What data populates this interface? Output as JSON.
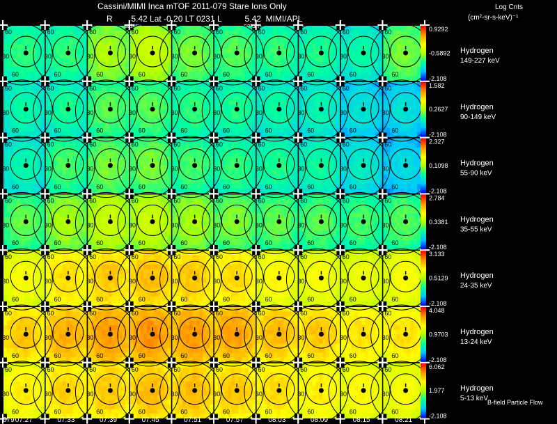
{
  "header": {
    "title": "Cassini/MIMI Inca mTOF  2011-079   Stare   Ions Only",
    "subtitle": "R        5.42 Lat -0.20 LT 0231 L          5.42  MIMI/APL",
    "saturn_labels": [
      "saturn",
      "saturn"
    ]
  },
  "legend": {
    "units_line1": "Log Cnts",
    "units_line2": "(cm²-sr-s-keV)⁻¹",
    "footer": "B-field Particle Flow"
  },
  "chart_data": {
    "type": "heatmap",
    "title": "Cassini/MIMI Inca mTOF 2011-079 Stare Ions Only",
    "date_label": "079",
    "time_labels": [
      "07:27",
      "07:33",
      "07:39",
      "07:45",
      "07:51",
      "07:57",
      "08:03",
      "08:09",
      "08:15",
      "08:21"
    ],
    "contour_labels": [
      "30",
      "60"
    ],
    "colorbar_colors": [
      "#0000ff",
      "#00c8ff",
      "#00ffa0",
      "#b4ff00",
      "#ffff00",
      "#ff9600",
      "#ff0000"
    ],
    "rows": [
      {
        "species": "Hydrogen",
        "energy": "149-227 keV",
        "cbar_max": "0.9292",
        "cbar_mid": "-0.5892",
        "cbar_min": "-2.108",
        "levels": [
          0.38,
          0.38,
          0.5,
          0.55,
          0.45,
          0.42,
          0.38,
          0.36,
          0.33,
          0.45
        ]
      },
      {
        "species": "Hydrogen",
        "energy": "90-149 keV",
        "cbar_max": "1.582",
        "cbar_mid": "0.2627",
        "cbar_min": "-2.108",
        "levels": [
          0.33,
          0.35,
          0.42,
          0.42,
          0.38,
          0.36,
          0.33,
          0.31,
          0.25,
          0.24
        ]
      },
      {
        "species": "Hydrogen",
        "energy": "55-90 keV",
        "cbar_max": "2.327",
        "cbar_mid": "0.1098",
        "cbar_min": "-2.108",
        "levels": [
          0.32,
          0.4,
          0.45,
          0.45,
          0.4,
          0.38,
          0.36,
          0.34,
          0.28,
          0.23
        ]
      },
      {
        "species": "Hydrogen",
        "energy": "35-55 keV",
        "cbar_max": "2.784",
        "cbar_mid": "0.3381",
        "cbar_min": "-2.108",
        "levels": [
          0.43,
          0.5,
          0.55,
          0.55,
          0.5,
          0.46,
          0.43,
          0.42,
          0.4,
          0.42
        ]
      },
      {
        "species": "Hydrogen",
        "energy": "24-35 keV",
        "cbar_max": "3.133",
        "cbar_mid": "0.5129",
        "cbar_min": "-2.108",
        "levels": [
          0.66,
          0.72,
          0.76,
          0.78,
          0.76,
          0.73,
          0.68,
          0.66,
          0.64,
          0.66
        ]
      },
      {
        "species": "Hydrogen",
        "energy": "13-24 keV",
        "cbar_max": "4.048",
        "cbar_mid": "0.9703",
        "cbar_min": "-2.108",
        "levels": [
          0.76,
          0.8,
          0.83,
          0.84,
          0.83,
          0.82,
          0.78,
          0.76,
          0.72,
          0.72
        ]
      },
      {
        "species": "Hydrogen",
        "energy": "5-13 keV",
        "cbar_max": "6.062",
        "cbar_mid": "1.977",
        "cbar_min": "-2.108",
        "levels": [
          0.7,
          0.74,
          0.76,
          0.78,
          0.78,
          0.76,
          0.73,
          0.7,
          0.68,
          0.66
        ]
      }
    ]
  }
}
